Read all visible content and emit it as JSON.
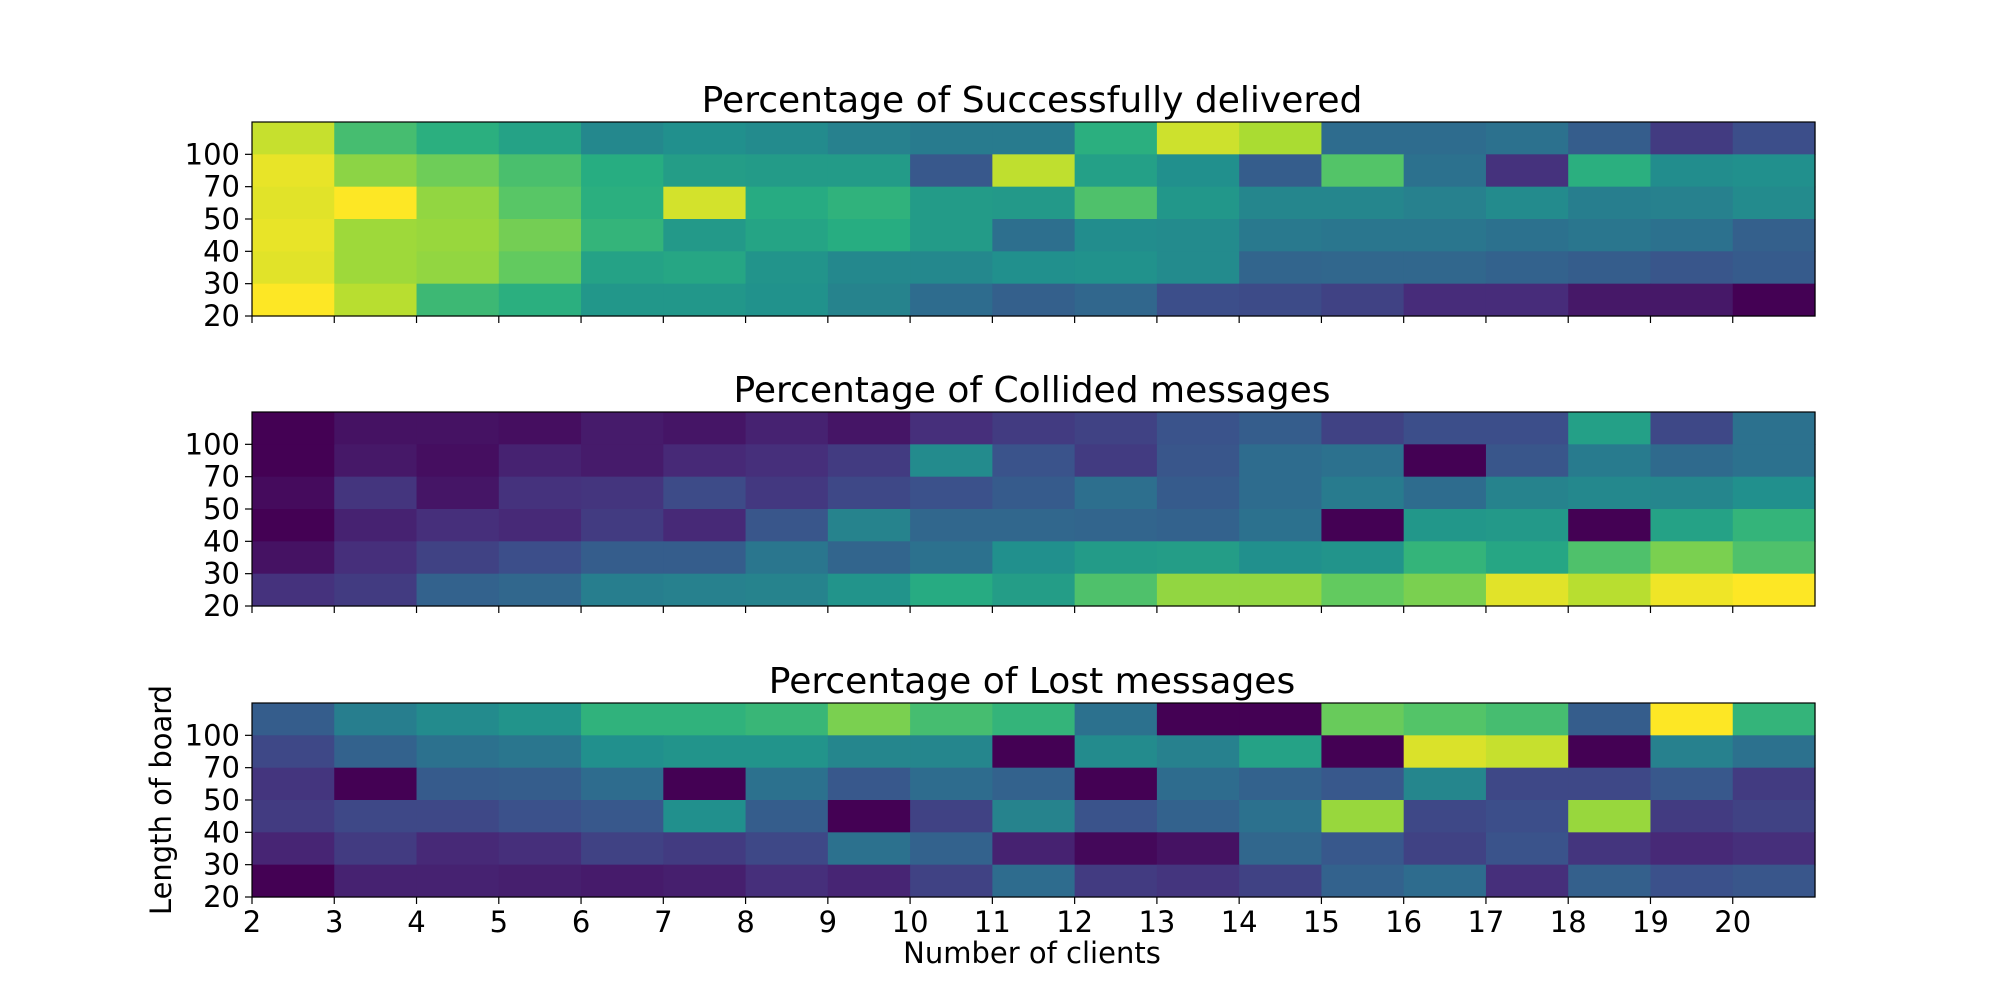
{
  "chart_data": [
    {
      "type": "heatmap",
      "title": "Percentage of Successfully delivered",
      "xlabel": "",
      "ylabel": "",
      "y_tick_labels": [
        "20",
        "30",
        "40",
        "50",
        "70",
        "100"
      ],
      "x_tick_labels": [
        "2",
        "3",
        "4",
        "5",
        "6",
        "7",
        "8",
        "9",
        "10",
        "11",
        "12",
        "13",
        "14",
        "15",
        "16",
        "17",
        "18",
        "19",
        "20"
      ],
      "x_tick_labels_visible": false,
      "colormap": "viridis",
      "value_range": [
        0,
        1
      ],
      "rows_top_to_bottom": [
        [
          0.92,
          0.7,
          0.64,
          0.58,
          0.47,
          0.5,
          0.48,
          0.44,
          0.42,
          0.42,
          0.64,
          0.93,
          0.88,
          0.36,
          0.36,
          0.38,
          0.3,
          0.18,
          0.24
        ],
        [
          0.97,
          0.83,
          0.78,
          0.71,
          0.63,
          0.56,
          0.55,
          0.55,
          0.28,
          0.91,
          0.57,
          0.5,
          0.3,
          0.73,
          0.38,
          0.15,
          0.64,
          0.49,
          0.5
        ],
        [
          0.96,
          1.0,
          0.84,
          0.74,
          0.64,
          0.94,
          0.62,
          0.65,
          0.55,
          0.54,
          0.72,
          0.53,
          0.46,
          0.46,
          0.44,
          0.48,
          0.43,
          0.44,
          0.48
        ],
        [
          0.97,
          0.86,
          0.85,
          0.79,
          0.66,
          0.54,
          0.59,
          0.63,
          0.55,
          0.37,
          0.49,
          0.48,
          0.41,
          0.4,
          0.4,
          0.38,
          0.4,
          0.38,
          0.31
        ],
        [
          0.96,
          0.86,
          0.84,
          0.76,
          0.58,
          0.6,
          0.52,
          0.47,
          0.47,
          0.5,
          0.51,
          0.48,
          0.33,
          0.34,
          0.34,
          0.32,
          0.3,
          0.27,
          0.29
        ],
        [
          1.0,
          0.9,
          0.68,
          0.64,
          0.53,
          0.53,
          0.51,
          0.45,
          0.36,
          0.31,
          0.34,
          0.24,
          0.23,
          0.2,
          0.13,
          0.13,
          0.07,
          0.07,
          0.0
        ]
      ]
    },
    {
      "type": "heatmap",
      "title": "Percentage of Collided messages",
      "xlabel": "",
      "ylabel": "",
      "y_tick_labels": [
        "20",
        "30",
        "40",
        "50",
        "70",
        "100"
      ],
      "x_tick_labels": [
        "2",
        "3",
        "4",
        "5",
        "6",
        "7",
        "8",
        "9",
        "10",
        "11",
        "12",
        "13",
        "14",
        "15",
        "16",
        "17",
        "18",
        "19",
        "20"
      ],
      "x_tick_labels_visible": false,
      "colormap": "viridis",
      "value_range": [
        0,
        1
      ],
      "rows_top_to_bottom": [
        [
          0.0,
          0.05,
          0.05,
          0.04,
          0.08,
          0.06,
          0.1,
          0.06,
          0.14,
          0.18,
          0.2,
          0.26,
          0.3,
          0.2,
          0.24,
          0.24,
          0.57,
          0.22,
          0.38
        ],
        [
          0.0,
          0.07,
          0.04,
          0.1,
          0.08,
          0.12,
          0.14,
          0.18,
          0.48,
          0.26,
          0.18,
          0.27,
          0.36,
          0.38,
          0.0,
          0.27,
          0.42,
          0.35,
          0.38
        ],
        [
          0.03,
          0.16,
          0.06,
          0.15,
          0.16,
          0.23,
          0.17,
          0.22,
          0.25,
          0.29,
          0.37,
          0.29,
          0.36,
          0.42,
          0.36,
          0.45,
          0.47,
          0.46,
          0.5
        ],
        [
          0.0,
          0.1,
          0.14,
          0.12,
          0.18,
          0.12,
          0.27,
          0.45,
          0.34,
          0.34,
          0.33,
          0.32,
          0.38,
          0.0,
          0.53,
          0.54,
          0.0,
          0.58,
          0.66
        ],
        [
          0.05,
          0.14,
          0.2,
          0.24,
          0.3,
          0.3,
          0.4,
          0.33,
          0.38,
          0.5,
          0.55,
          0.56,
          0.5,
          0.52,
          0.66,
          0.6,
          0.72,
          0.8,
          0.72
        ],
        [
          0.15,
          0.18,
          0.32,
          0.34,
          0.43,
          0.44,
          0.45,
          0.52,
          0.62,
          0.56,
          0.72,
          0.84,
          0.84,
          0.76,
          0.8,
          0.96,
          0.9,
          0.98,
          1.0
        ]
      ]
    },
    {
      "type": "heatmap",
      "title": "Percentage of Lost messages",
      "xlabel": "Number of clients",
      "ylabel": "Length of board",
      "y_tick_labels": [
        "20",
        "30",
        "40",
        "50",
        "70",
        "100"
      ],
      "x_tick_labels": [
        "2",
        "3",
        "4",
        "5",
        "6",
        "7",
        "8",
        "9",
        "10",
        "11",
        "12",
        "13",
        "14",
        "15",
        "16",
        "17",
        "18",
        "19",
        "20"
      ],
      "x_tick_labels_visible": true,
      "colormap": "viridis",
      "value_range": [
        0,
        1
      ],
      "rows_top_to_bottom": [
        [
          0.3,
          0.43,
          0.48,
          0.52,
          0.65,
          0.65,
          0.67,
          0.8,
          0.7,
          0.66,
          0.38,
          0.0,
          0.0,
          0.77,
          0.73,
          0.7,
          0.3,
          1.0,
          0.66
        ],
        [
          0.22,
          0.32,
          0.38,
          0.4,
          0.5,
          0.52,
          0.52,
          0.46,
          0.46,
          0.0,
          0.48,
          0.44,
          0.58,
          0.0,
          0.95,
          0.92,
          0.0,
          0.44,
          0.38
        ],
        [
          0.16,
          0.0,
          0.29,
          0.3,
          0.36,
          0.0,
          0.38,
          0.28,
          0.36,
          0.32,
          0.0,
          0.36,
          0.32,
          0.28,
          0.46,
          0.22,
          0.22,
          0.28,
          0.18
        ],
        [
          0.18,
          0.22,
          0.22,
          0.25,
          0.28,
          0.5,
          0.3,
          0.0,
          0.2,
          0.45,
          0.26,
          0.32,
          0.38,
          0.85,
          0.22,
          0.24,
          0.85,
          0.18,
          0.2
        ],
        [
          0.11,
          0.18,
          0.12,
          0.14,
          0.2,
          0.18,
          0.22,
          0.38,
          0.32,
          0.1,
          0.02,
          0.05,
          0.34,
          0.28,
          0.2,
          0.26,
          0.16,
          0.12,
          0.14
        ],
        [
          0.0,
          0.1,
          0.1,
          0.09,
          0.08,
          0.09,
          0.14,
          0.11,
          0.2,
          0.36,
          0.18,
          0.16,
          0.2,
          0.32,
          0.36,
          0.14,
          0.31,
          0.25,
          0.27
        ]
      ]
    }
  ]
}
